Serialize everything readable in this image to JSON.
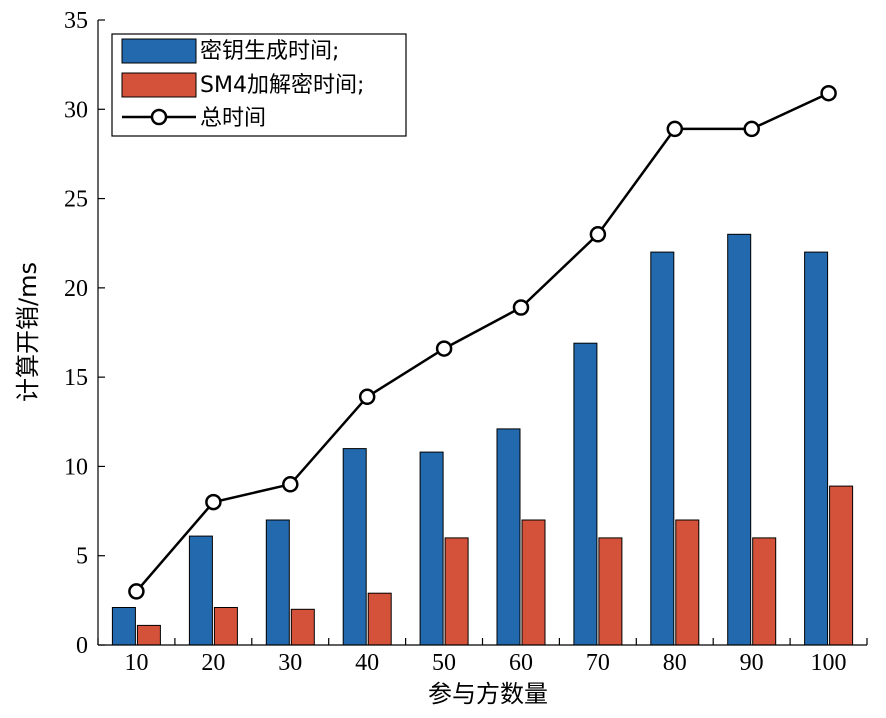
{
  "chart_data": {
    "type": "bar",
    "xlabel": "参与方数量",
    "ylabel": "计算开销/ms",
    "categories": [
      "10",
      "20",
      "30",
      "40",
      "50",
      "60",
      "70",
      "80",
      "90",
      "100"
    ],
    "ylim": [
      0,
      35
    ],
    "yticks": [
      "0",
      "5",
      "10",
      "15",
      "20",
      "25",
      "30",
      "35"
    ],
    "series": [
      {
        "name": "密钥生成时间;",
        "kind": "bar",
        "color": "#2369AE",
        "values": [
          2.1,
          6.1,
          7.0,
          11.0,
          10.8,
          12.1,
          16.9,
          22.0,
          23.0,
          22.0
        ]
      },
      {
        "name": "SM4加解密时间;",
        "kind": "bar",
        "color": "#D5523A",
        "values": [
          1.1,
          2.1,
          2.0,
          2.9,
          6.0,
          7.0,
          6.0,
          7.0,
          6.0,
          8.9
        ]
      },
      {
        "name": "总时间",
        "kind": "line",
        "color": "#000000",
        "marker": "circle",
        "values": [
          3.0,
          8.0,
          9.0,
          13.9,
          16.6,
          18.9,
          23.0,
          28.9,
          28.9,
          30.9
        ]
      }
    ],
    "grid": false,
    "legend_position": "top-left"
  }
}
